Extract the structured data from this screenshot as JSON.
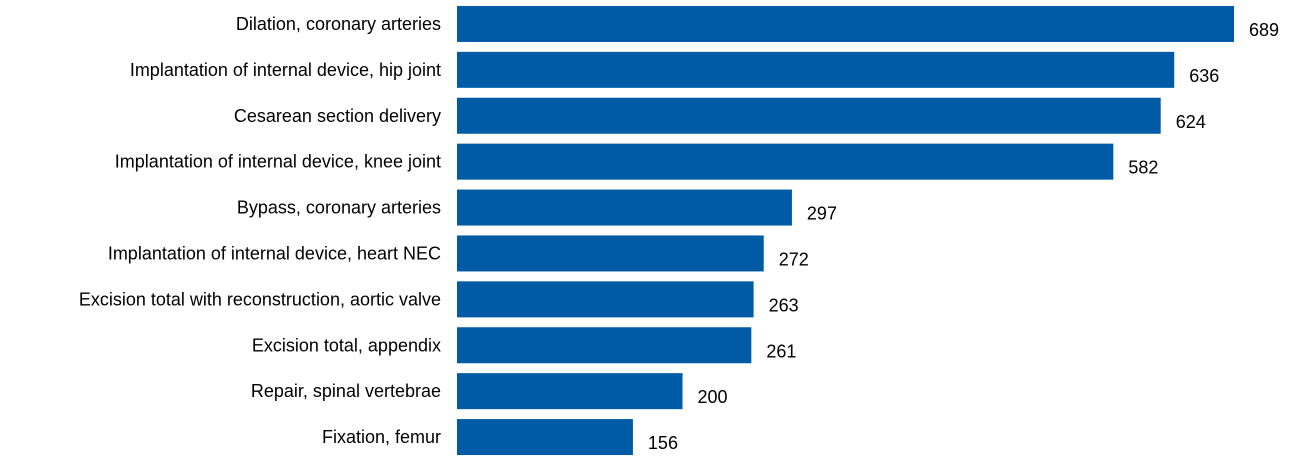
{
  "chart_data": {
    "type": "bar",
    "orientation": "horizontal",
    "title": "",
    "xlabel": "",
    "ylabel": "",
    "categories": [
      "Dilation, coronary arteries",
      "Implantation of internal device, hip joint",
      "Cesarean section delivery",
      "Implantation of internal device, knee joint",
      "Bypass, coronary arteries",
      "Implantation of internal device, heart NEC",
      "Excision total with reconstruction, aortic valve",
      "Excision total, appendix",
      "Repair, spinal vertebrae",
      "Fixation, femur"
    ],
    "values": [
      689,
      636,
      624,
      582,
      297,
      272,
      263,
      261,
      200,
      156
    ],
    "data_labels": [
      "689",
      "636",
      "624",
      "582",
      "297",
      "272",
      "263",
      "261",
      "200",
      "156"
    ],
    "xlim": [
      0,
      689
    ],
    "grid": false,
    "legend": "none",
    "bar_color": "#005ba6"
  }
}
